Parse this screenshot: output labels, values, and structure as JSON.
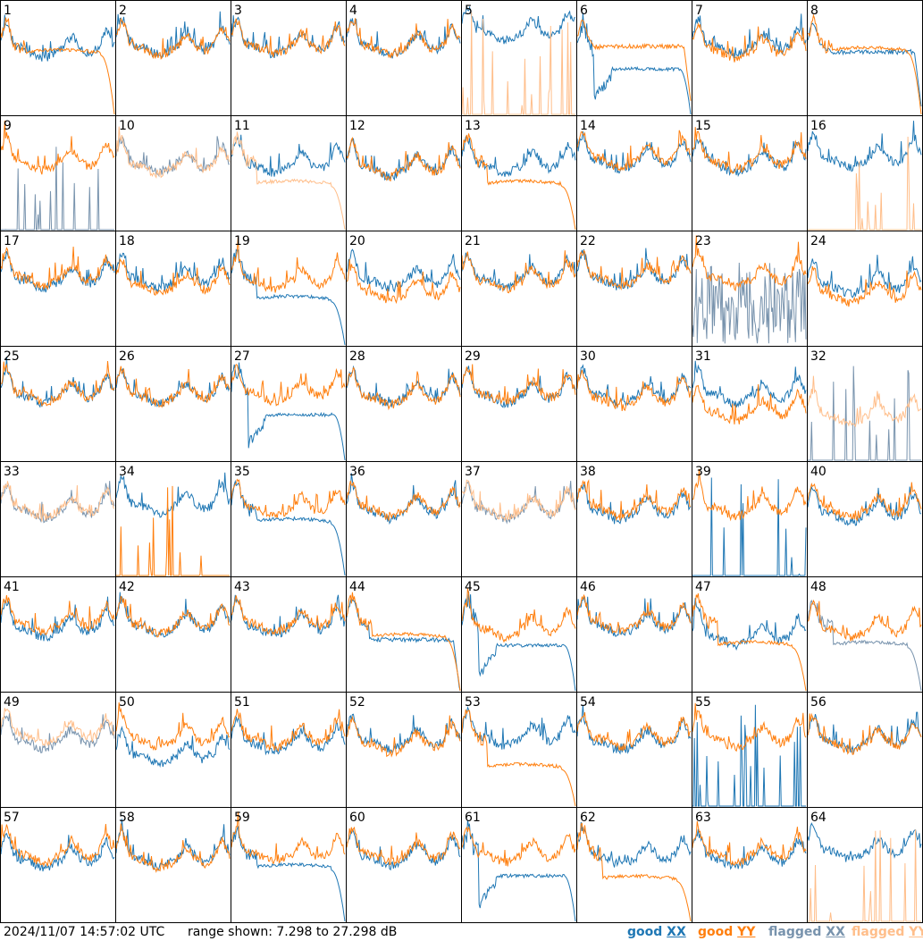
{
  "colors": {
    "good_xx": "#1f77b4",
    "good_yy": "#ff7f0e",
    "flagged_xx": "#7893ad",
    "flagged_yy": "#ffbe8a",
    "grid": "#000000",
    "background": "#ffffff"
  },
  "footer": {
    "timestamp": "2024/11/07 14:57:02 UTC",
    "range": "range shown: 7.298 to 27.298 dB"
  },
  "legend": {
    "good_label": "good",
    "flagged_label": "flagged",
    "xx": "XX",
    "yy": "YY"
  },
  "chart_data": {
    "type": "line",
    "layout": "8x8 small multiples, one panel per input",
    "y_range_db": [
      7.298,
      27.298
    ],
    "y_unit": "dB",
    "series_names": [
      "good XX",
      "good YY",
      "flagged XX",
      "flagged YY"
    ],
    "panels": [
      {
        "id": "1",
        "xx": {
          "state": "good",
          "shape": "normal",
          "level": 0.45
        },
        "yy": {
          "state": "good",
          "shape": "rolloff",
          "level": 0.48
        }
      },
      {
        "id": "2",
        "xx": {
          "state": "good",
          "shape": "normal",
          "level": 0.42
        },
        "yy": {
          "state": "good",
          "shape": "normal",
          "level": 0.45
        }
      },
      {
        "id": "3",
        "xx": {
          "state": "good",
          "shape": "normal",
          "level": 0.42
        },
        "yy": {
          "state": "good",
          "shape": "normal",
          "level": 0.44
        }
      },
      {
        "id": "4",
        "xx": {
          "state": "good",
          "shape": "normal",
          "level": 0.42
        },
        "yy": {
          "state": "good",
          "shape": "normal",
          "level": 0.44
        }
      },
      {
        "id": "5",
        "xx": {
          "state": "good",
          "shape": "normal",
          "level": 0.3
        },
        "yy": {
          "state": "flagged",
          "shape": "spikes",
          "level": 1.0
        }
      },
      {
        "id": "6",
        "xx": {
          "state": "good",
          "shape": "collapse",
          "level": 0.6
        },
        "yy": {
          "state": "good",
          "shape": "flat",
          "level": 0.4
        }
      },
      {
        "id": "7",
        "xx": {
          "state": "good",
          "shape": "normal",
          "level": 0.42
        },
        "yy": {
          "state": "good",
          "shape": "normal",
          "level": 0.48
        }
      },
      {
        "id": "8",
        "xx": {
          "state": "good",
          "shape": "flat",
          "level": 0.45
        },
        "yy": {
          "state": "good",
          "shape": "rolloff",
          "level": 0.46
        }
      },
      {
        "id": "9",
        "xx": {
          "state": "flagged",
          "shape": "spikes",
          "level": 1.0
        },
        "yy": {
          "state": "good",
          "shape": "normal",
          "level": 0.45
        }
      },
      {
        "id": "10",
        "xx": {
          "state": "flagged",
          "shape": "normal",
          "level": 0.45
        },
        "yy": {
          "state": "flagged",
          "shape": "normal",
          "level": 0.48
        }
      },
      {
        "id": "11",
        "xx": {
          "state": "good",
          "shape": "normal",
          "level": 0.45
        },
        "yy": {
          "state": "flagged",
          "shape": "rolloff",
          "level": 0.62
        }
      },
      {
        "id": "12",
        "xx": {
          "state": "good",
          "shape": "normal",
          "level": 0.48
        },
        "yy": {
          "state": "good",
          "shape": "normal",
          "level": 0.5
        }
      },
      {
        "id": "13",
        "xx": {
          "state": "good",
          "shape": "normal",
          "level": 0.45
        },
        "yy": {
          "state": "good",
          "shape": "rolloff",
          "level": 0.62
        }
      },
      {
        "id": "14",
        "xx": {
          "state": "good",
          "shape": "normal",
          "level": 0.42
        },
        "yy": {
          "state": "good",
          "shape": "normal",
          "level": 0.42
        }
      },
      {
        "id": "15",
        "xx": {
          "state": "good",
          "shape": "normal",
          "level": 0.45
        },
        "yy": {
          "state": "good",
          "shape": "normal",
          "level": 0.44
        }
      },
      {
        "id": "16",
        "xx": {
          "state": "good",
          "shape": "normal",
          "level": 0.4
        },
        "yy": {
          "state": "flagged",
          "shape": "spikes",
          "level": 1.0
        }
      },
      {
        "id": "17",
        "xx": {
          "state": "good",
          "shape": "normal",
          "level": 0.45
        },
        "yy": {
          "state": "good",
          "shape": "normal",
          "level": 0.45
        }
      },
      {
        "id": "18",
        "xx": {
          "state": "good",
          "shape": "normal",
          "level": 0.45
        },
        "yy": {
          "state": "good",
          "shape": "normal",
          "level": 0.52
        }
      },
      {
        "id": "19",
        "xx": {
          "state": "good",
          "shape": "rolloff",
          "level": 0.62
        },
        "yy": {
          "state": "good",
          "shape": "normal",
          "level": 0.48
        }
      },
      {
        "id": "20",
        "xx": {
          "state": "good",
          "shape": "normal",
          "level": 0.45
        },
        "yy": {
          "state": "good",
          "shape": "normal",
          "level": 0.58
        }
      },
      {
        "id": "21",
        "xx": {
          "state": "good",
          "shape": "normal",
          "level": 0.44
        },
        "yy": {
          "state": "good",
          "shape": "normal",
          "level": 0.48
        }
      },
      {
        "id": "22",
        "xx": {
          "state": "good",
          "shape": "normal",
          "level": 0.44
        },
        "yy": {
          "state": "good",
          "shape": "normal",
          "level": 0.45
        }
      },
      {
        "id": "23",
        "xx": {
          "state": "flagged",
          "shape": "noise",
          "level": 0.75
        },
        "yy": {
          "state": "good",
          "shape": "normal",
          "level": 0.45
        }
      },
      {
        "id": "24",
        "xx": {
          "state": "good",
          "shape": "normal",
          "level": 0.5
        },
        "yy": {
          "state": "good",
          "shape": "normal",
          "level": 0.6
        }
      },
      {
        "id": "25",
        "xx": {
          "state": "good",
          "shape": "normal",
          "level": 0.45
        },
        "yy": {
          "state": "good",
          "shape": "normal",
          "level": 0.46
        }
      },
      {
        "id": "26",
        "xx": {
          "state": "good",
          "shape": "normal",
          "level": 0.45
        },
        "yy": {
          "state": "good",
          "shape": "normal",
          "level": 0.47
        }
      },
      {
        "id": "27",
        "xx": {
          "state": "good",
          "shape": "collapse",
          "level": 0.6
        },
        "yy": {
          "state": "good",
          "shape": "normal",
          "level": 0.45
        }
      },
      {
        "id": "28",
        "xx": {
          "state": "good",
          "shape": "normal",
          "level": 0.45
        },
        "yy": {
          "state": "good",
          "shape": "normal",
          "level": 0.48
        }
      },
      {
        "id": "29",
        "xx": {
          "state": "good",
          "shape": "normal",
          "level": 0.45
        },
        "yy": {
          "state": "good",
          "shape": "normal",
          "level": 0.46
        }
      },
      {
        "id": "30",
        "xx": {
          "state": "good",
          "shape": "normal",
          "level": 0.45
        },
        "yy": {
          "state": "good",
          "shape": "normal",
          "level": 0.5
        }
      },
      {
        "id": "31",
        "xx": {
          "state": "good",
          "shape": "normal",
          "level": 0.45
        },
        "yy": {
          "state": "good",
          "shape": "normal",
          "level": 0.62
        }
      },
      {
        "id": "32",
        "xx": {
          "state": "flagged",
          "shape": "spikes",
          "level": 1.0
        },
        "yy": {
          "state": "flagged",
          "shape": "normal",
          "level": 0.65
        }
      },
      {
        "id": "33",
        "xx": {
          "state": "flagged",
          "shape": "normal",
          "level": 0.45
        },
        "yy": {
          "state": "flagged",
          "shape": "normal",
          "level": 0.46
        }
      },
      {
        "id": "34",
        "xx": {
          "state": "good",
          "shape": "normal",
          "level": 0.4
        },
        "yy": {
          "state": "good",
          "shape": "spikes",
          "level": 0.95
        }
      },
      {
        "id": "35",
        "xx": {
          "state": "good",
          "shape": "rolloff",
          "level": 0.55
        },
        "yy": {
          "state": "good",
          "shape": "normal",
          "level": 0.45
        }
      },
      {
        "id": "36",
        "xx": {
          "state": "good",
          "shape": "normal",
          "level": 0.45
        },
        "yy": {
          "state": "good",
          "shape": "normal",
          "level": 0.45
        }
      },
      {
        "id": "37",
        "xx": {
          "state": "flagged",
          "shape": "normal",
          "level": 0.45
        },
        "yy": {
          "state": "flagged",
          "shape": "normal",
          "level": 0.46
        }
      },
      {
        "id": "38",
        "xx": {
          "state": "good",
          "shape": "normal",
          "level": 0.47
        },
        "yy": {
          "state": "good",
          "shape": "normal",
          "level": 0.45
        }
      },
      {
        "id": "39",
        "xx": {
          "state": "good",
          "shape": "spikes",
          "level": 1.0
        },
        "yy": {
          "state": "good",
          "shape": "normal",
          "level": 0.45
        }
      },
      {
        "id": "40",
        "xx": {
          "state": "good",
          "shape": "normal",
          "level": 0.48
        },
        "yy": {
          "state": "good",
          "shape": "normal",
          "level": 0.46
        }
      },
      {
        "id": "41",
        "xx": {
          "state": "good",
          "shape": "normal",
          "level": 0.48
        },
        "yy": {
          "state": "good",
          "shape": "normal",
          "level": 0.45
        }
      },
      {
        "id": "42",
        "xx": {
          "state": "good",
          "shape": "normal",
          "level": 0.45
        },
        "yy": {
          "state": "good",
          "shape": "normal",
          "level": 0.46
        }
      },
      {
        "id": "43",
        "xx": {
          "state": "good",
          "shape": "normal",
          "level": 0.46
        },
        "yy": {
          "state": "good",
          "shape": "normal",
          "level": 0.45
        }
      },
      {
        "id": "44",
        "xx": {
          "state": "good",
          "shape": "flat",
          "level": 0.55
        },
        "yy": {
          "state": "good",
          "shape": "rolloff",
          "level": 0.55
        }
      },
      {
        "id": "45",
        "xx": {
          "state": "good",
          "shape": "collapse",
          "level": 0.6
        },
        "yy": {
          "state": "good",
          "shape": "normal",
          "level": 0.5
        }
      },
      {
        "id": "46",
        "xx": {
          "state": "good",
          "shape": "normal",
          "level": 0.45
        },
        "yy": {
          "state": "good",
          "shape": "normal",
          "level": 0.45
        }
      },
      {
        "id": "47",
        "xx": {
          "state": "good",
          "shape": "normal",
          "level": 0.55
        },
        "yy": {
          "state": "good",
          "shape": "rolloff",
          "level": 0.62
        }
      },
      {
        "id": "48",
        "xx": {
          "state": "flagged",
          "shape": "rolloff",
          "level": 0.62
        },
        "yy": {
          "state": "good",
          "shape": "normal",
          "level": 0.5
        }
      },
      {
        "id": "49",
        "xx": {
          "state": "flagged",
          "shape": "normal",
          "level": 0.45
        },
        "yy": {
          "state": "flagged",
          "shape": "normal",
          "level": 0.42
        }
      },
      {
        "id": "50",
        "xx": {
          "state": "good",
          "shape": "normal",
          "level": 0.58
        },
        "yy": {
          "state": "good",
          "shape": "normal",
          "level": 0.45
        }
      },
      {
        "id": "51",
        "xx": {
          "state": "good",
          "shape": "normal",
          "level": 0.48
        },
        "yy": {
          "state": "good",
          "shape": "normal",
          "level": 0.45
        }
      },
      {
        "id": "52",
        "xx": {
          "state": "good",
          "shape": "normal",
          "level": 0.45
        },
        "yy": {
          "state": "good",
          "shape": "normal",
          "level": 0.5
        }
      },
      {
        "id": "53",
        "xx": {
          "state": "good",
          "shape": "normal",
          "level": 0.42
        },
        "yy": {
          "state": "good",
          "shape": "rolloff",
          "level": 0.68
        }
      },
      {
        "id": "54",
        "xx": {
          "state": "good",
          "shape": "normal",
          "level": 0.46
        },
        "yy": {
          "state": "good",
          "shape": "normal",
          "level": 0.45
        }
      },
      {
        "id": "55",
        "xx": {
          "state": "good",
          "shape": "spikes",
          "level": 1.0
        },
        "yy": {
          "state": "good",
          "shape": "normal",
          "level": 0.45
        }
      },
      {
        "id": "56",
        "xx": {
          "state": "good",
          "shape": "normal",
          "level": 0.45
        },
        "yy": {
          "state": "good",
          "shape": "normal",
          "level": 0.48
        }
      },
      {
        "id": "57",
        "xx": {
          "state": "good",
          "shape": "normal",
          "level": 0.48
        },
        "yy": {
          "state": "good",
          "shape": "normal",
          "level": 0.45
        }
      },
      {
        "id": "58",
        "xx": {
          "state": "good",
          "shape": "normal",
          "level": 0.47
        },
        "yy": {
          "state": "good",
          "shape": "normal",
          "level": 0.5
        }
      },
      {
        "id": "59",
        "xx": {
          "state": "good",
          "shape": "rolloff",
          "level": 0.55
        },
        "yy": {
          "state": "good",
          "shape": "normal",
          "level": 0.45
        }
      },
      {
        "id": "60",
        "xx": {
          "state": "good",
          "shape": "normal",
          "level": 0.46
        },
        "yy": {
          "state": "good",
          "shape": "normal",
          "level": 0.45
        }
      },
      {
        "id": "61",
        "xx": {
          "state": "good",
          "shape": "collapse",
          "level": 0.6
        },
        "yy": {
          "state": "good",
          "shape": "normal",
          "level": 0.45
        }
      },
      {
        "id": "62",
        "xx": {
          "state": "good",
          "shape": "normal",
          "level": 0.45
        },
        "yy": {
          "state": "good",
          "shape": "rolloff",
          "level": 0.65
        }
      },
      {
        "id": "63",
        "xx": {
          "state": "good",
          "shape": "normal",
          "level": 0.47
        },
        "yy": {
          "state": "good",
          "shape": "normal",
          "level": 0.45
        }
      },
      {
        "id": "64",
        "xx": {
          "state": "good",
          "shape": "normal",
          "level": 0.4
        },
        "yy": {
          "state": "flagged",
          "shape": "spikes",
          "level": 1.0
        }
      }
    ]
  }
}
